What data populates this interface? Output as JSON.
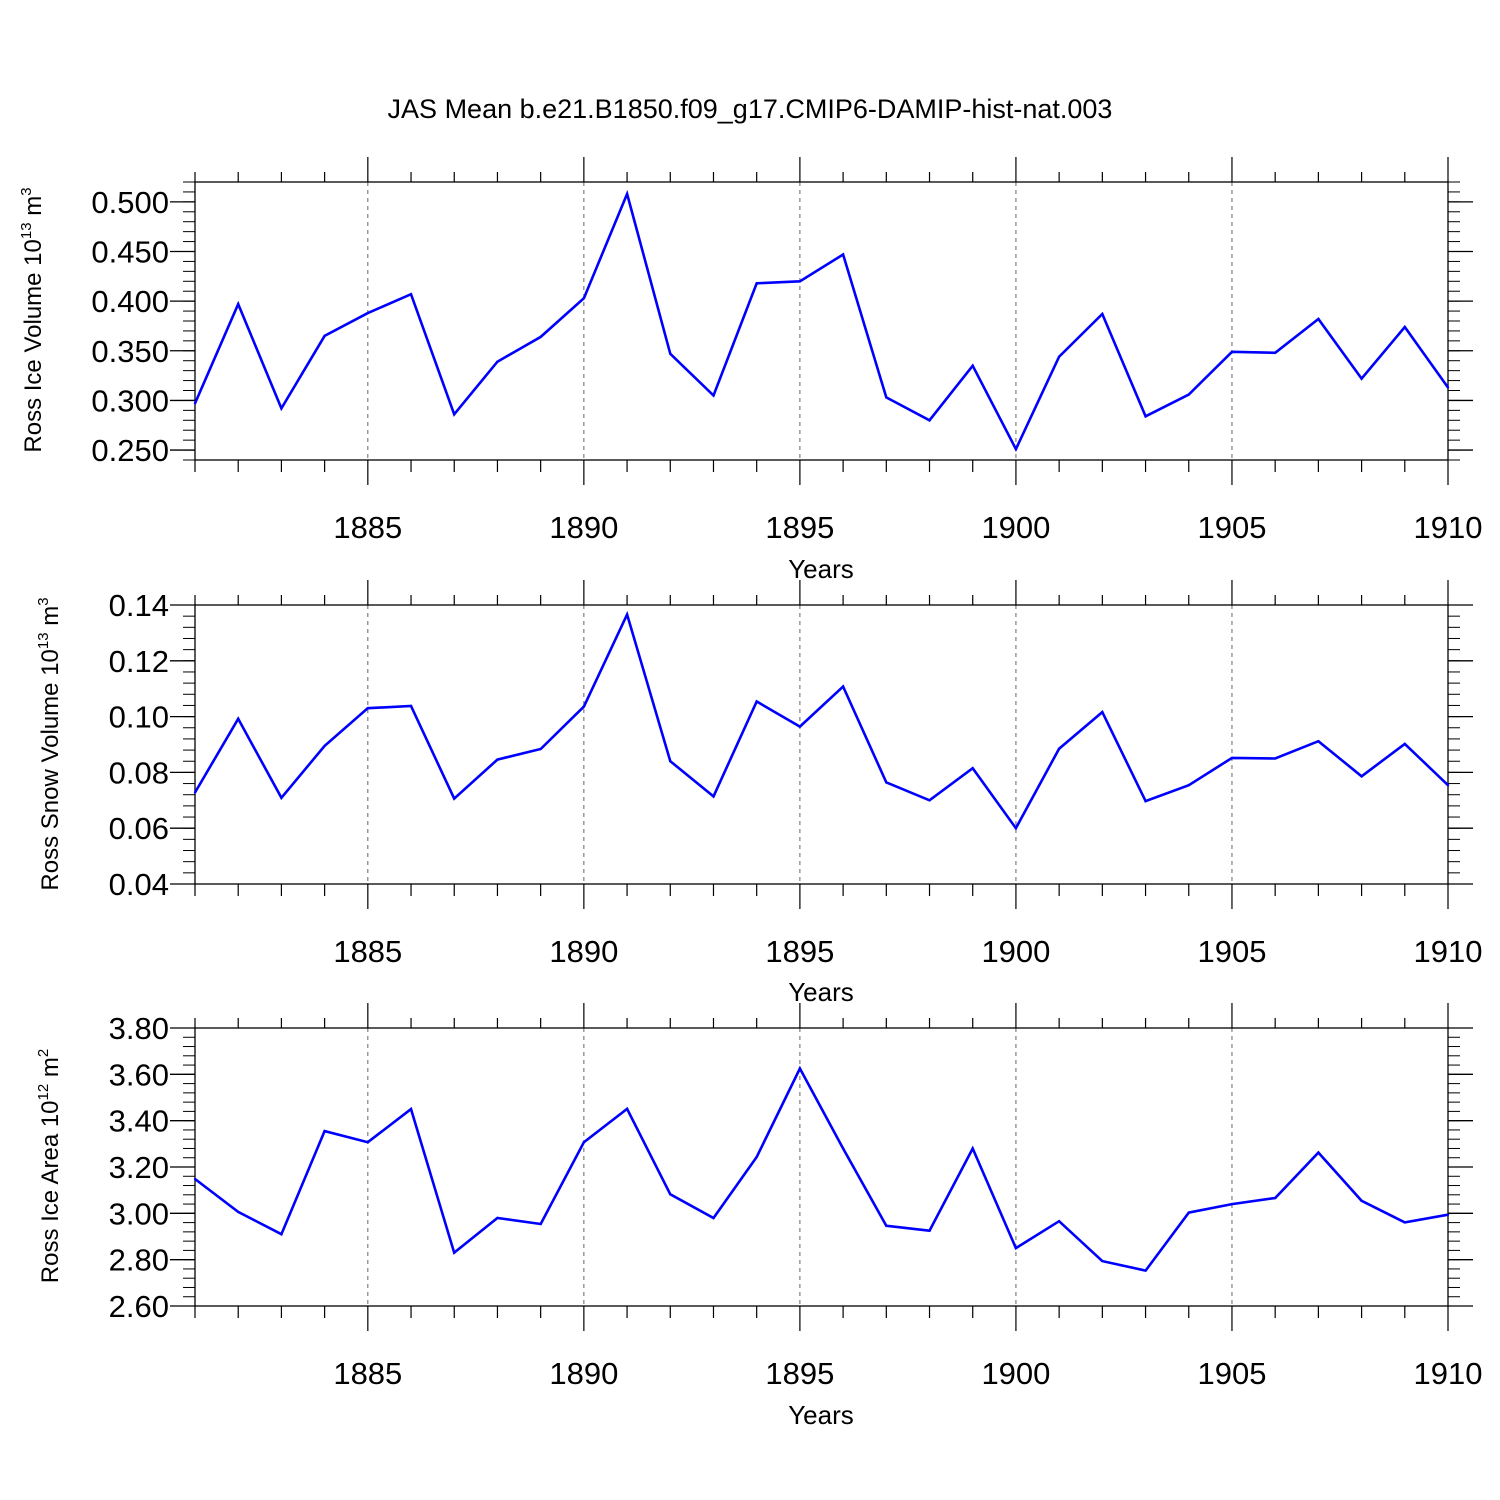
{
  "figure_title": "JAS Mean b.e21.B1850.f09_g17.CMIP6-DAMIP-hist-nat.003",
  "colors": {
    "series": "#0000ff",
    "axis": "#000000",
    "grid": "#666666"
  },
  "chart_data": [
    {
      "type": "line",
      "title": "",
      "xlabel": "Years",
      "ylabel": {
        "prefix": "Ross Ice Volume 10",
        "exponent": "13",
        "unit": " m",
        "unit_exponent": "3"
      },
      "xlim": [
        1881,
        1910
      ],
      "ylim": [
        0.24,
        0.52
      ],
      "x_ticks": [
        1885,
        1890,
        1895,
        1900,
        1905,
        1910
      ],
      "x_tick_labels": [
        "1885",
        "1890",
        "1895",
        "1900",
        "1905",
        "1910"
      ],
      "y_ticks": [
        0.25,
        0.3,
        0.35,
        0.4,
        0.45,
        0.5
      ],
      "y_tick_labels": [
        "0.250",
        "0.300",
        "0.350",
        "0.400",
        "0.450",
        "0.500"
      ],
      "y_minor_step": 0.01,
      "grid": "vertical-dashed",
      "series": [
        {
          "name": "Ross Ice Volume",
          "x": [
            1881,
            1882,
            1883,
            1884,
            1885,
            1886,
            1887,
            1888,
            1889,
            1890,
            1891,
            1892,
            1893,
            1894,
            1895,
            1896,
            1897,
            1898,
            1899,
            1900,
            1901,
            1902,
            1903,
            1904,
            1905,
            1906,
            1907,
            1908,
            1909,
            1910
          ],
          "values": [
            0.297,
            0.397,
            0.292,
            0.365,
            0.388,
            0.407,
            0.286,
            0.339,
            0.364,
            0.403,
            0.508,
            0.347,
            0.305,
            0.418,
            0.42,
            0.447,
            0.303,
            0.28,
            0.335,
            0.251,
            0.344,
            0.387,
            0.284,
            0.306,
            0.349,
            0.348,
            0.382,
            0.322,
            0.374,
            0.313
          ]
        }
      ]
    },
    {
      "type": "line",
      "title": "",
      "xlabel": "Years",
      "ylabel": {
        "prefix": "Ross Snow Volume 10",
        "exponent": "13",
        "unit": " m",
        "unit_exponent": "3"
      },
      "xlim": [
        1881,
        1910
      ],
      "ylim": [
        0.04,
        0.14
      ],
      "x_ticks": [
        1885,
        1890,
        1895,
        1900,
        1905,
        1910
      ],
      "x_tick_labels": [
        "1885",
        "1890",
        "1895",
        "1900",
        "1905",
        "1910"
      ],
      "y_ticks": [
        0.04,
        0.06,
        0.08,
        0.1,
        0.12,
        0.14
      ],
      "y_tick_labels": [
        "0.04",
        "0.06",
        "0.08",
        "0.10",
        "0.12",
        "0.14"
      ],
      "y_minor_step": 0.004,
      "grid": "vertical-dashed",
      "series": [
        {
          "name": "Ross Snow Volume",
          "x": [
            1881,
            1882,
            1883,
            1884,
            1885,
            1886,
            1887,
            1888,
            1889,
            1890,
            1891,
            1892,
            1893,
            1894,
            1895,
            1896,
            1897,
            1898,
            1899,
            1900,
            1901,
            1902,
            1903,
            1904,
            1905,
            1906,
            1907,
            1908,
            1909,
            1910
          ],
          "values": [
            0.0728,
            0.0992,
            0.0709,
            0.0895,
            0.103,
            0.1038,
            0.0706,
            0.0846,
            0.0884,
            0.1036,
            0.1366,
            0.084,
            0.0714,
            0.1054,
            0.0964,
            0.1108,
            0.0764,
            0.07,
            0.0815,
            0.06,
            0.0885,
            0.1016,
            0.0697,
            0.0754,
            0.0852,
            0.085,
            0.0912,
            0.0786,
            0.0902,
            0.0754
          ]
        }
      ]
    },
    {
      "type": "line",
      "title": "",
      "xlabel": "Years",
      "ylabel": {
        "prefix": "Ross Ice Area 10",
        "exponent": "12",
        "unit": " m",
        "unit_exponent": "2"
      },
      "xlim": [
        1881,
        1910
      ],
      "ylim": [
        2.6,
        3.8
      ],
      "x_ticks": [
        1885,
        1890,
        1895,
        1900,
        1905,
        1910
      ],
      "x_tick_labels": [
        "1885",
        "1890",
        "1895",
        "1900",
        "1905",
        "1910"
      ],
      "y_ticks": [
        2.6,
        2.8,
        3.0,
        3.2,
        3.4,
        3.6,
        3.8
      ],
      "y_tick_labels": [
        "2.60",
        "2.80",
        "3.00",
        "3.20",
        "3.40",
        "3.60",
        "3.80"
      ],
      "y_minor_step": 0.04,
      "grid": "vertical-dashed",
      "series": [
        {
          "name": "Ross Ice Area",
          "x": [
            1881,
            1882,
            1883,
            1884,
            1885,
            1886,
            1887,
            1888,
            1889,
            1890,
            1891,
            1892,
            1893,
            1894,
            1895,
            1896,
            1897,
            1898,
            1899,
            1900,
            1901,
            1902,
            1903,
            1904,
            1905,
            1906,
            1907,
            1908,
            1909,
            1910
          ],
          "values": [
            3.148,
            3.006,
            2.91,
            3.355,
            3.307,
            3.45,
            2.83,
            2.98,
            2.954,
            3.307,
            3.451,
            3.082,
            2.98,
            3.243,
            3.625,
            3.28,
            2.946,
            2.925,
            3.28,
            2.85,
            2.966,
            2.794,
            2.753,
            3.003,
            3.04,
            3.066,
            3.262,
            3.054,
            2.961,
            2.994
          ]
        }
      ]
    }
  ]
}
